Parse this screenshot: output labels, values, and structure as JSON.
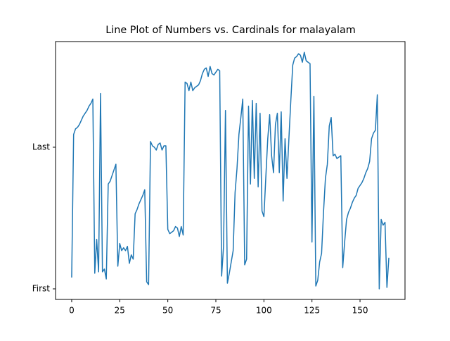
{
  "chart_data": {
    "type": "line",
    "title": "Line Plot of Numbers vs. Cardinals for malayalam",
    "x": [
      0,
      1,
      2,
      3,
      4,
      5,
      6,
      7,
      8,
      9,
      10,
      11,
      12,
      13,
      14,
      15,
      16,
      17,
      18,
      19,
      20,
      21,
      22,
      23,
      24,
      25,
      26,
      27,
      28,
      29,
      30,
      31,
      32,
      33,
      34,
      35,
      36,
      37,
      38,
      39,
      40,
      41,
      42,
      43,
      44,
      45,
      46,
      47,
      48,
      49,
      50,
      51,
      52,
      53,
      54,
      55,
      56,
      57,
      58,
      59,
      60,
      61,
      62,
      63,
      64,
      65,
      66,
      67,
      68,
      69,
      70,
      71,
      72,
      73,
      74,
      75,
      76,
      77,
      78,
      79,
      80,
      81,
      82,
      83,
      84,
      85,
      86,
      87,
      88,
      89,
      90,
      91,
      92,
      93,
      94,
      95,
      96,
      97,
      98,
      99,
      100,
      101,
      102,
      103,
      104,
      105,
      106,
      107,
      108,
      109,
      110,
      111,
      112,
      113,
      114,
      115,
      116,
      117,
      118,
      119,
      120,
      121,
      122,
      123,
      124,
      125,
      126,
      127,
      128,
      129,
      130,
      131,
      132,
      133,
      134,
      135,
      136,
      137,
      138,
      139,
      140,
      141,
      142,
      143,
      144,
      145,
      146,
      147,
      148,
      149,
      150,
      151,
      152,
      153,
      154,
      155,
      156,
      157,
      158,
      159,
      160,
      161,
      162,
      163,
      164,
      165
    ],
    "series": [
      {
        "color": "#1f77b4",
        "values": [
          0.08,
          1.09,
          1.13,
          1.14,
          1.16,
          1.19,
          1.22,
          1.24,
          1.26,
          1.29,
          1.31,
          1.34,
          0.11,
          0.35,
          0.12,
          1.38,
          0.12,
          0.14,
          0.07,
          0.74,
          0.76,
          0.8,
          0.84,
          0.88,
          0.16,
          0.32,
          0.27,
          0.29,
          0.27,
          0.3,
          0.18,
          0.24,
          0.21,
          0.53,
          0.56,
          0.6,
          0.63,
          0.66,
          0.7,
          0.05,
          0.03,
          1.04,
          1.01,
          1.0,
          0.98,
          1.02,
          1.03,
          0.98,
          1.01,
          1.01,
          0.42,
          0.39,
          0.4,
          0.41,
          0.44,
          0.43,
          0.37,
          0.44,
          0.38,
          1.46,
          1.45,
          1.4,
          1.46,
          1.4,
          1.42,
          1.43,
          1.44,
          1.47,
          1.52,
          1.55,
          1.56,
          1.5,
          1.57,
          1.52,
          1.51,
          1.53,
          1.55,
          1.54,
          0.09,
          0.3,
          1.26,
          0.04,
          0.11,
          0.19,
          0.27,
          0.68,
          0.85,
          1.09,
          1.21,
          1.34,
          0.17,
          0.21,
          1.29,
          0.74,
          1.33,
          0.78,
          1.31,
          0.72,
          1.24,
          0.55,
          0.51,
          0.79,
          1.06,
          1.23,
          0.94,
          0.82,
          1.16,
          1.24,
          0.82,
          1.25,
          0.62,
          1.06,
          0.78,
          1.06,
          1.33,
          1.58,
          1.63,
          1.64,
          1.66,
          1.65,
          1.6,
          1.67,
          1.61,
          1.6,
          1.59,
          0.33,
          1.36,
          0.02,
          0.06,
          0.19,
          0.25,
          0.54,
          0.78,
          0.88,
          1.15,
          1.21,
          0.94,
          0.95,
          0.92,
          0.93,
          0.94,
          0.15,
          0.33,
          0.49,
          0.54,
          0.57,
          0.61,
          0.64,
          0.66,
          0.71,
          0.73,
          0.75,
          0.78,
          0.82,
          0.85,
          0.9,
          1.06,
          1.1,
          1.12,
          1.37,
          0.0,
          0.49,
          0.45,
          0.47,
          0.01,
          0.22
        ]
      }
    ],
    "xlim": [
      -8.4,
      173.4
    ],
    "xticks": [
      0,
      25,
      50,
      75,
      100,
      125,
      150
    ],
    "ylim": [
      -0.0746,
      1.746
    ],
    "yticks": [
      {
        "value": 0,
        "label": "First"
      },
      {
        "value": 1,
        "label": "Last"
      }
    ]
  }
}
